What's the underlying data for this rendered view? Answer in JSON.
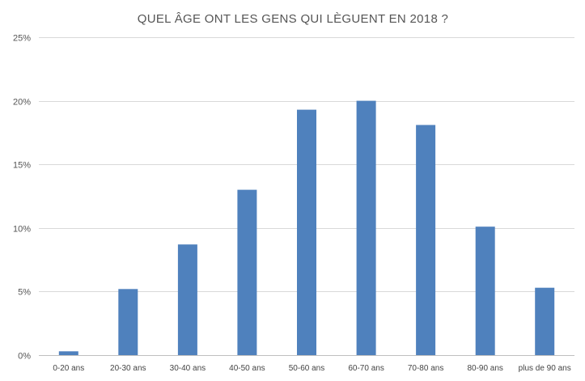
{
  "chart_data": {
    "type": "bar",
    "title": "QUEL ÂGE ONT LES GENS QUI LÈGUENT EN 2018 ?",
    "xlabel": "",
    "ylabel": "",
    "categories": [
      "0-20 ans",
      "20-30 ans",
      "30-40 ans",
      "40-50 ans",
      "50-60 ans",
      "60-70 ans",
      "70-80 ans",
      "80-90 ans",
      "plus de 90 ans"
    ],
    "values": [
      0.3,
      5.2,
      8.7,
      13.0,
      19.3,
      20.0,
      18.1,
      10.1,
      5.3
    ],
    "ylim": [
      0,
      25
    ],
    "yticks": [
      0,
      5,
      10,
      15,
      20,
      25
    ],
    "ytick_labels": [
      "0%",
      "5%",
      "10%",
      "15%",
      "20%",
      "25%"
    ],
    "grid": true,
    "legend": "none",
    "bar_color": "#4f81bd"
  }
}
